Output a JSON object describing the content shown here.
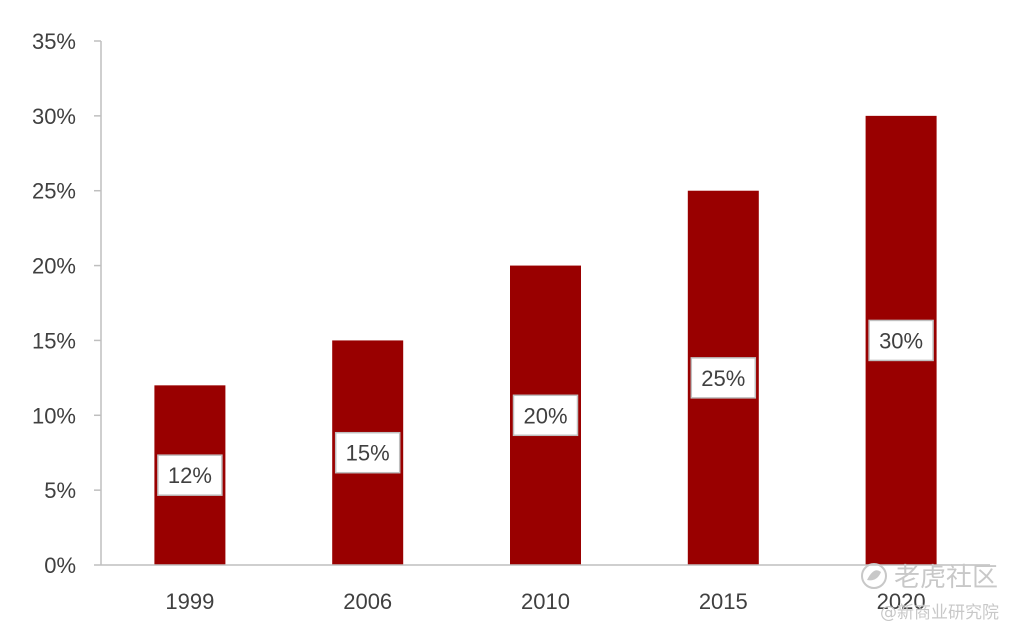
{
  "chart_data": {
    "type": "bar",
    "title": "",
    "xlabel": "",
    "ylabel": "",
    "categories": [
      "1999",
      "2006",
      "2010",
      "2015",
      "2020"
    ],
    "values": [
      12,
      15,
      20,
      25,
      30
    ],
    "data_labels": [
      "12%",
      "15%",
      "20%",
      "25%",
      "30%"
    ],
    "ylim": [
      0,
      35
    ],
    "yticks": [
      0,
      5,
      10,
      15,
      20,
      25,
      30,
      35
    ],
    "ytick_labels": [
      "0%",
      "5%",
      "10%",
      "15%",
      "20%",
      "25%",
      "30%",
      "35%"
    ],
    "grid": false,
    "legend": "none",
    "bar_color": "#990000",
    "axis_color": "#bfbfbf",
    "text_color": "#404040"
  },
  "watermark": {
    "brand": "老虎社区",
    "sub": "@新商业研究院",
    "icon": "tiger-logo-icon"
  }
}
